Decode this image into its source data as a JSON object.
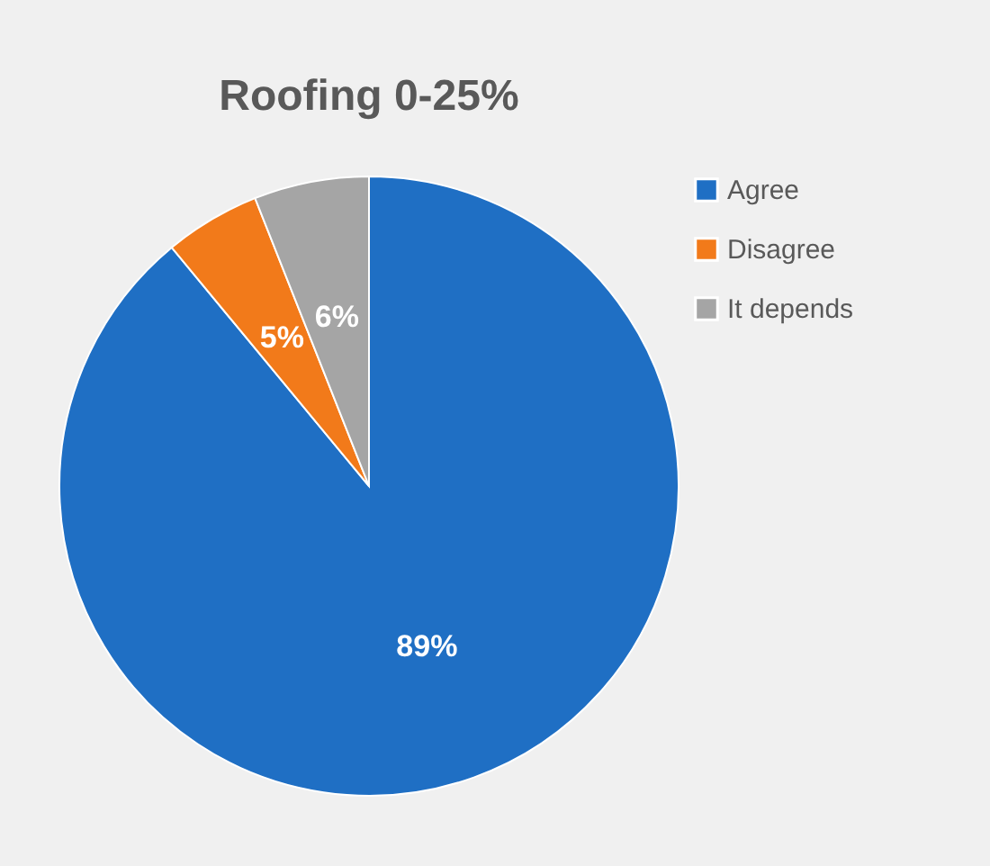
{
  "chart_data": {
    "type": "pie",
    "title": "Roofing 0-25%",
    "categories": [
      "Agree",
      "Disagree",
      "It depends"
    ],
    "values": [
      89,
      5,
      6
    ],
    "colors": [
      "#1f6fc4",
      "#f27a1a",
      "#a5a5a5"
    ],
    "value_labels": [
      "89%",
      "5%",
      "6%"
    ],
    "legend": "right"
  }
}
